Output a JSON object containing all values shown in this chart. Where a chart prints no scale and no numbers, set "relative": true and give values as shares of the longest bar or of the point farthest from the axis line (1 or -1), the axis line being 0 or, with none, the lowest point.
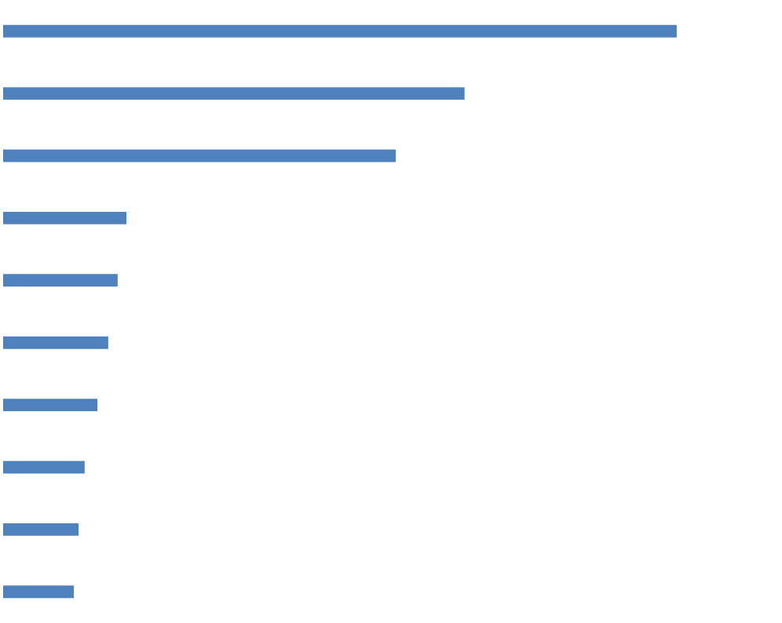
{
  "chart_data": {
    "type": "bar",
    "orientation": "horizontal",
    "relative": true,
    "categories": [
      null,
      null,
      null,
      null,
      null,
      null,
      null,
      null,
      null,
      null
    ],
    "series": [
      {
        "color": "#4f81bd",
        "values": [
          1,
          0.685,
          0.583,
          0.183,
          0.17,
          0.156,
          0.14,
          0.121,
          0.112,
          0.105
        ]
      }
    ]
  }
}
